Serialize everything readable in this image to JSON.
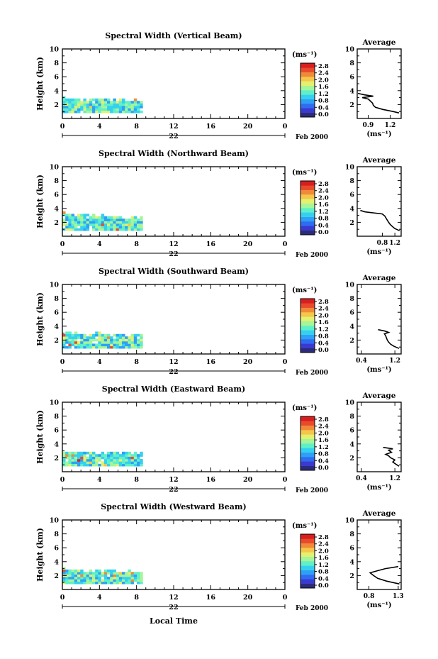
{
  "figure": {
    "xlabel": "Local Time",
    "ylabel": "Height (km)",
    "date_label": "Feb 2000",
    "day_label": "22",
    "unit_label": "(ms⁻¹)",
    "average_title": "Average"
  },
  "colormap": {
    "ticks": [
      "0.0",
      "0.4",
      "0.8",
      "1.2",
      "1.6",
      "2.0",
      "2.4",
      "2.8"
    ],
    "colors": [
      "#2b2b7a",
      "#3a3ad0",
      "#2f6cf0",
      "#2fa0f5",
      "#35d0f0",
      "#5ff0c8",
      "#a5f59a",
      "#e4f070",
      "#f5c64a",
      "#f08a38",
      "#e84a2c",
      "#d81e1e"
    ],
    "range": [
      0.0,
      2.8
    ]
  },
  "chart_data": [
    {
      "type": "heatmap",
      "title": "Spectral Width (Vertical Beam)",
      "xlabel": "Local Time",
      "ylabel": "Height (km)",
      "xlim": [
        0,
        24
      ],
      "ylim": [
        0,
        10
      ],
      "xticks": [
        "0",
        "4",
        "8",
        "12",
        "16",
        "20",
        "0"
      ],
      "yticks": [
        "2",
        "4",
        "6",
        "8",
        "10"
      ],
      "data_extent": {
        "x": [
          0,
          8.6
        ],
        "y_top_start": 3.2,
        "y_top_end": 2.8,
        "y_bottom": 0.8
      },
      "average_profile": {
        "xlim": [
          0.75,
          1.35
        ],
        "xticks": [
          "0.9",
          "1.2"
        ],
        "height": [
          0.8,
          1.0,
          1.3,
          1.6,
          1.9,
          2.2,
          2.5,
          2.8,
          3.0,
          3.2,
          3.4,
          3.6
        ],
        "value": [
          1.32,
          1.24,
          1.1,
          1.0,
          0.97,
          0.96,
          0.93,
          0.9,
          0.82,
          0.97,
          0.85,
          0.76
        ]
      }
    },
    {
      "type": "heatmap",
      "title": "Spectral Width (Northward Beam)",
      "xlabel": "Local Time",
      "ylabel": "Height (km)",
      "xlim": [
        0,
        24
      ],
      "ylim": [
        0,
        10
      ],
      "xticks": [
        "0",
        "4",
        "8",
        "12",
        "16",
        "20",
        "0"
      ],
      "yticks": [
        "2",
        "4",
        "6",
        "8",
        "10"
      ],
      "data_extent": {
        "x": [
          0,
          8.6
        ],
        "y_top_start": 3.4,
        "y_top_end": 2.8,
        "y_bottom": 0.8
      },
      "average_profile": {
        "xlim": [
          0.0,
          1.4
        ],
        "xticks": [
          "0.8",
          "1.2"
        ],
        "height": [
          0.8,
          1.1,
          1.4,
          1.7,
          2.0,
          2.3,
          2.6,
          2.9,
          3.2,
          3.5,
          3.7
        ],
        "value": [
          1.35,
          1.2,
          1.12,
          1.05,
          1.0,
          0.96,
          0.92,
          0.88,
          0.8,
          0.25,
          0.1
        ]
      }
    },
    {
      "type": "heatmap",
      "title": "Spectral Width (Southward Beam)",
      "xlabel": "Local Time",
      "ylabel": "Height (km)",
      "xlim": [
        0,
        24
      ],
      "ylim": [
        0,
        10
      ],
      "xticks": [
        "0",
        "4",
        "8",
        "12",
        "16",
        "20",
        "0"
      ],
      "yticks": [
        "2",
        "4",
        "6",
        "8",
        "10"
      ],
      "data_extent": {
        "x": [
          0,
          8.6
        ],
        "y_top_start": 3.2,
        "y_top_end": 2.8,
        "y_bottom": 0.8
      },
      "average_profile": {
        "xlim": [
          0.3,
          1.35
        ],
        "xticks": [
          "0.4",
          "1.2"
        ],
        "height": [
          0.8,
          1.1,
          1.4,
          1.7,
          2.0,
          2.3,
          2.6,
          2.9,
          3.1,
          3.3,
          3.5
        ],
        "value": [
          1.3,
          1.18,
          1.1,
          1.05,
          1.02,
          1.0,
          0.98,
          0.95,
          1.05,
          0.96,
          0.8
        ]
      }
    },
    {
      "type": "heatmap",
      "title": "Spectral Width (Eastward Beam)",
      "xlabel": "Local Time",
      "ylabel": "Height (km)",
      "xlim": [
        0,
        24
      ],
      "ylim": [
        0,
        10
      ],
      "xticks": [
        "0",
        "4",
        "8",
        "12",
        "16",
        "20",
        "0"
      ],
      "yticks": [
        "2",
        "4",
        "6",
        "8",
        "10"
      ],
      "data_extent": {
        "x": [
          0,
          8.6
        ],
        "y_top_start": 3.1,
        "y_top_end": 2.8,
        "y_bottom": 0.8
      },
      "average_profile": {
        "xlim": [
          0.3,
          1.35
        ],
        "xticks": [
          "0.4",
          "1.2"
        ],
        "height": [
          0.8,
          1.1,
          1.4,
          1.7,
          2.0,
          2.3,
          2.5,
          2.8,
          3.1,
          3.3,
          3.5
        ],
        "value": [
          1.3,
          1.22,
          1.15,
          1.2,
          1.1,
          1.05,
          0.98,
          1.12,
          1.05,
          1.15,
          0.92
        ]
      }
    },
    {
      "type": "heatmap",
      "title": "Spectral Width (Westward Beam)",
      "xlabel": "Local Time",
      "ylabel": "Height (km)",
      "xlim": [
        0,
        24
      ],
      "ylim": [
        0,
        10
      ],
      "xticks": [
        "0",
        "4",
        "8",
        "12",
        "16",
        "20",
        "0"
      ],
      "yticks": [
        "2",
        "4",
        "6",
        "8",
        "10"
      ],
      "data_extent": {
        "x": [
          0,
          8.6
        ],
        "y_top_start": 3.1,
        "y_top_end": 2.6,
        "y_bottom": 0.8
      },
      "average_profile": {
        "xlim": [
          0.6,
          1.35
        ],
        "xticks": [
          "0.8",
          "1.3"
        ],
        "height": [
          0.8,
          1.2,
          1.6,
          2.0,
          2.4,
          2.7,
          3.0,
          3.3
        ],
        "value": [
          1.32,
          1.1,
          0.95,
          0.88,
          0.82,
          0.95,
          1.08,
          1.3
        ]
      }
    }
  ]
}
